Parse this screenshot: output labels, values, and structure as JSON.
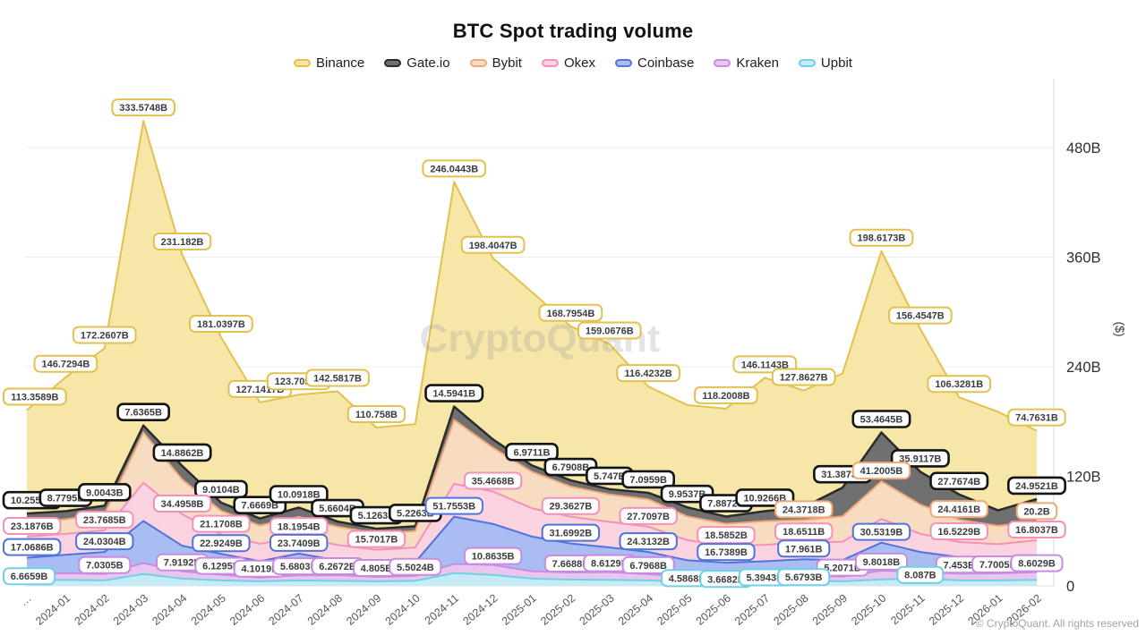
{
  "title": "BTC Spot trading volume",
  "watermark": "CryptoQuant",
  "copyright": "© CryptoQuant. All rights reserved",
  "y_axis": {
    "title": "($)",
    "ticks": [
      "0",
      "120B",
      "240B",
      "360B",
      "480B"
    ],
    "tick_values": [
      0,
      120,
      240,
      360,
      480
    ]
  },
  "chart_data": {
    "type": "area",
    "stacked": true,
    "grid": true,
    "legend_position": "top",
    "ylim": [
      0,
      480
    ],
    "x": [
      "…",
      "2024-01",
      "2024-02",
      "2024-03",
      "2024-04",
      "2024-05",
      "2024-06",
      "2024-07",
      "2024-08",
      "2024-09",
      "2024-10",
      "2024-11",
      "2024-12",
      "2025-01",
      "2025-02",
      "2025-03",
      "2025-04",
      "2025-05",
      "2025-06",
      "2025-07",
      "2025-08",
      "2025-09",
      "2025-10",
      "2025-11",
      "2025-12",
      "2026-01",
      "2026-02"
    ],
    "series": [
      {
        "name": "Binance",
        "color": "#e3c14e",
        "fill": "#f6e7a8",
        "values": [
          113.3589,
          146.7294,
          172.2607,
          333.5748,
          231.182,
          181.0397,
          127.1417,
          123.7056,
          142.5817,
          110.758,
          112,
          246.0443,
          198.4047,
          190,
          168.7954,
          159.0676,
          116.4232,
          112,
          118.2008,
          146.1143,
          127.8627,
          125,
          198.6173,
          156.4547,
          106.3281,
          108,
          74.7631
        ],
        "point_labels": [
          "113.3589B",
          "146.7294B",
          "172.2607B",
          "333.5748B",
          "231.182B",
          "181.0397B",
          "127.1417B",
          "123.7056B",
          "142.5817B",
          "110.758B",
          null,
          "246.0443B",
          "198.4047B",
          null,
          "168.7954B",
          "159.0676B",
          "116.4232B",
          null,
          "118.2008B",
          "146.1143B",
          "127.8627B",
          null,
          "198.6173B",
          "156.4547B",
          "106.3281B",
          null,
          "74.7631B"
        ]
      },
      {
        "name": "Gate.io",
        "color": "#2b2b2b",
        "fill": "#707070",
        "values": [
          10.2554,
          8.7795,
          9.0043,
          7.6365,
          14.8862,
          9.0104,
          7.6669,
          10.0918,
          5.6604,
          5.1263,
          5.2263,
          14.5941,
          9,
          6.9711,
          6.7908,
          5.747,
          7.0959,
          9.9537,
          7.8872,
          10.9266,
          14,
          31.3873,
          53.4645,
          35.9117,
          27.7674,
          17,
          24.9521
        ],
        "point_labels": [
          "10.2554B",
          "8.7795B",
          "9.0043B",
          "7.6365B",
          "14.8862B",
          "9.0104B",
          "7.6669B",
          "10.0918B",
          "5.6604B",
          "5.1263B",
          "5.2263B",
          "14.5941B",
          null,
          "6.9711B",
          "6.7908B",
          "5.747B",
          "7.0959B",
          "9.9537B",
          "7.8872B",
          "10.9266B",
          null,
          "31.3873B",
          "53.4645B",
          "35.9117B",
          "27.7674B",
          null,
          "24.9521B"
        ]
      },
      {
        "name": "Bybit",
        "color": "#f0a876",
        "fill": "#f8dcc2",
        "values": [
          15,
          16,
          18,
          55,
          38,
          26,
          20,
          22,
          20,
          18,
          18,
          70,
          48,
          40,
          33,
          30,
          30,
          26,
          24,
          26,
          24.3718,
          28,
          41.2005,
          32,
          24.4161,
          20,
          20.2
        ],
        "point_labels": [
          null,
          null,
          null,
          null,
          null,
          null,
          null,
          null,
          null,
          null,
          null,
          null,
          null,
          null,
          null,
          null,
          null,
          null,
          null,
          null,
          "24.3718B",
          null,
          "41.2005B",
          null,
          "24.4161B",
          null,
          "20.2B"
        ]
      },
      {
        "name": "Okex",
        "color": "#f590ba",
        "fill": "#fad3e1",
        "values": [
          23.1876,
          23,
          23.7685,
          42,
          34.4958,
          21.1708,
          19,
          18.1954,
          17,
          15.7017,
          16,
          36,
          35.4668,
          31,
          29.3627,
          28,
          27.7097,
          22,
          18.5852,
          18,
          18.6511,
          20,
          26,
          20,
          16.5229,
          15,
          16.8037
        ],
        "point_labels": [
          "23.1876B",
          null,
          "23.7685B",
          null,
          "34.4958B",
          "21.1708B",
          null,
          "18.1954B",
          null,
          "15.7017B",
          null,
          null,
          "35.4668B",
          null,
          "29.3627B",
          null,
          "27.7097B",
          null,
          "18.5852B",
          null,
          "18.6511B",
          null,
          null,
          null,
          "16.5229B",
          null,
          "16.8037B"
        ]
      },
      {
        "name": "Coinbase",
        "color": "#5273dc",
        "fill": "#a9bdf2",
        "values": [
          17.0686,
          20,
          24.0304,
          46,
          28,
          22.9249,
          18,
          23.7409,
          16,
          14,
          15,
          51.7553,
          45,
          38,
          31.6992,
          27,
          24.3132,
          18,
          16.7389,
          16,
          17.961,
          18,
          30.5319,
          22,
          18,
          17,
          18
        ],
        "point_labels": [
          "17.0686B",
          null,
          "24.0304B",
          null,
          null,
          "22.9249B",
          null,
          "23.7409B",
          null,
          null,
          null,
          "51.7553B",
          null,
          null,
          "31.6992B",
          null,
          "24.3132B",
          null,
          "16.7389B",
          null,
          "17.961B",
          null,
          "30.5319B",
          null,
          null,
          null,
          null
        ]
      },
      {
        "name": "Kraken",
        "color": "#c98bdf",
        "fill": "#e8c6f0",
        "values": [
          7,
          7.5,
          7.0305,
          12,
          7.9192,
          6.1295,
          4.1019,
          5.6803,
          6.2672,
          4.805,
          5.5024,
          10,
          10.8635,
          8,
          7.6688,
          8.6129,
          6.7968,
          5.5,
          5,
          5.5,
          5.5,
          5.2071,
          9.8018,
          7,
          7.453,
          7.7005,
          8.6029
        ],
        "point_labels": [
          null,
          null,
          "7.0305B",
          null,
          "7.9192B",
          "6.1295B",
          "4.1019B",
          "5.6803B",
          "6.2672B",
          "4.805B",
          "5.5024B",
          null,
          "10.8635B",
          null,
          "7.6688B",
          "8.6129B",
          "6.7968B",
          null,
          null,
          null,
          null,
          "5.2071B",
          "9.8018B",
          null,
          "7.453B",
          "7.7005B",
          "8.6029B"
        ]
      },
      {
        "name": "Upbit",
        "color": "#6fd0e6",
        "fill": "#c6ebf4",
        "values": [
          6.6659,
          6.5,
          6,
          13,
          8,
          6,
          5,
          6,
          5.5,
          5,
          5.5,
          14,
          12,
          8,
          7,
          6.5,
          6,
          4.5868,
          3.6682,
          5.3943,
          5.6793,
          5,
          7,
          8.087,
          6,
          6,
          6.5
        ],
        "point_labels": [
          "6.6659B",
          null,
          null,
          null,
          null,
          null,
          null,
          null,
          null,
          null,
          null,
          null,
          null,
          null,
          null,
          null,
          null,
          "4.5868B",
          "3.6682B",
          "5.3943B",
          "5.6793B",
          null,
          null,
          "8.087B",
          null,
          null,
          null
        ]
      }
    ]
  }
}
